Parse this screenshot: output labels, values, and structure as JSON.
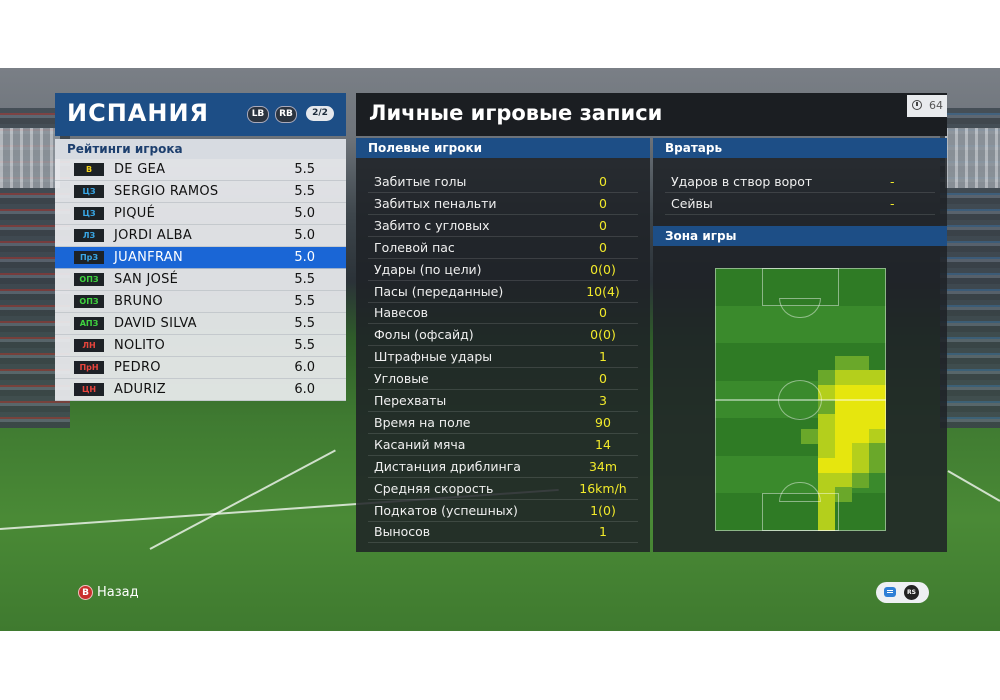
{
  "team": {
    "name": "ИСПАНИЯ",
    "lb_label": "LB",
    "rb_label": "RB",
    "page_indicator": "2/2"
  },
  "ratings_title": "Рейтинги игрока",
  "players": [
    {
      "pos": "В",
      "pos_color": "#f2d21b",
      "name": "DE GEA",
      "rating": "5.5",
      "selected": false
    },
    {
      "pos": "ЦЗ",
      "pos_color": "#39a7e6",
      "name": "SERGIO RAMOS",
      "rating": "5.5",
      "selected": false
    },
    {
      "pos": "ЦЗ",
      "pos_color": "#39a7e6",
      "name": "PIQUÉ",
      "rating": "5.0",
      "selected": false
    },
    {
      "pos": "ЛЗ",
      "pos_color": "#39a7e6",
      "name": "JORDI ALBA",
      "rating": "5.0",
      "selected": false
    },
    {
      "pos": "ПрЗ",
      "pos_color": "#39a7e6",
      "name": "JUANFRAN",
      "rating": "5.0",
      "selected": true
    },
    {
      "pos": "ОПЗ",
      "pos_color": "#3fd23f",
      "name": "SAN JOSÉ",
      "rating": "5.5",
      "selected": false
    },
    {
      "pos": "ОПЗ",
      "pos_color": "#3fd23f",
      "name": "BRUNO",
      "rating": "5.5",
      "selected": false
    },
    {
      "pos": "АПЗ",
      "pos_color": "#3fd23f",
      "name": "DAVID SILVA",
      "rating": "5.5",
      "selected": false
    },
    {
      "pos": "ЛН",
      "pos_color": "#e8453c",
      "name": "NOLITO",
      "rating": "5.5",
      "selected": false
    },
    {
      "pos": "ПрН",
      "pos_color": "#e8453c",
      "name": "PEDRO",
      "rating": "6.0",
      "selected": false
    },
    {
      "pos": "ЦН",
      "pos_color": "#e8453c",
      "name": "ADURIZ",
      "rating": "6.0",
      "selected": false
    }
  ],
  "main": {
    "title": "Личные игровые записи",
    "timer": "64"
  },
  "field_players": {
    "title": "Полевые игроки",
    "stats": [
      {
        "label": "Забитые голы",
        "value": "0"
      },
      {
        "label": "Забитых пенальти",
        "value": "0"
      },
      {
        "label": "Забито с угловых",
        "value": "0"
      },
      {
        "label": "Голевой пас",
        "value": "0"
      },
      {
        "label": "Удары (по цели)",
        "value": "0(0)"
      },
      {
        "label": "Пасы (переданные)",
        "value": "10(4)"
      },
      {
        "label": "Навесов",
        "value": "0"
      },
      {
        "label": "Фолы (офсайд)",
        "value": "0(0)"
      },
      {
        "label": "Штрафные удары",
        "value": "1"
      },
      {
        "label": "Угловые",
        "value": "0"
      },
      {
        "label": "Перехваты",
        "value": "3"
      },
      {
        "label": "Время на поле",
        "value": "90"
      },
      {
        "label": "Касаний мяча",
        "value": "14"
      },
      {
        "label": "Дистанция дриблинга",
        "value": "34m"
      },
      {
        "label": "Средняя скорость",
        "value": "16km/h"
      },
      {
        "label": "Подкатов (успешных)",
        "value": "1(0)"
      },
      {
        "label": "Выносов",
        "value": "1"
      }
    ]
  },
  "goalkeeper": {
    "title": "Вратарь",
    "stats": [
      {
        "label": "Ударов в створ ворот",
        "value": "-"
      },
      {
        "label": "Сейвы",
        "value": "-"
      }
    ]
  },
  "zone": {
    "title": "Зона игры",
    "heatmap_rows": [
      "..........",
      "..........",
      "..........",
      "..........",
      "..........",
      "..........",
      ".......11.",
      "......1222",
      "......2333",
      "......1333",
      "......2333",
      ".....12332",
      "......2321",
      "......3321",
      "......221.",
      "......21..",
      "......2...",
      "......2..."
    ],
    "heat_colors": [
      "#6aa82a",
      "#b4cf1c",
      "#e6e60e"
    ]
  },
  "footer": {
    "back_button": "B",
    "back_label": "Назад",
    "rs_label": "RS"
  }
}
